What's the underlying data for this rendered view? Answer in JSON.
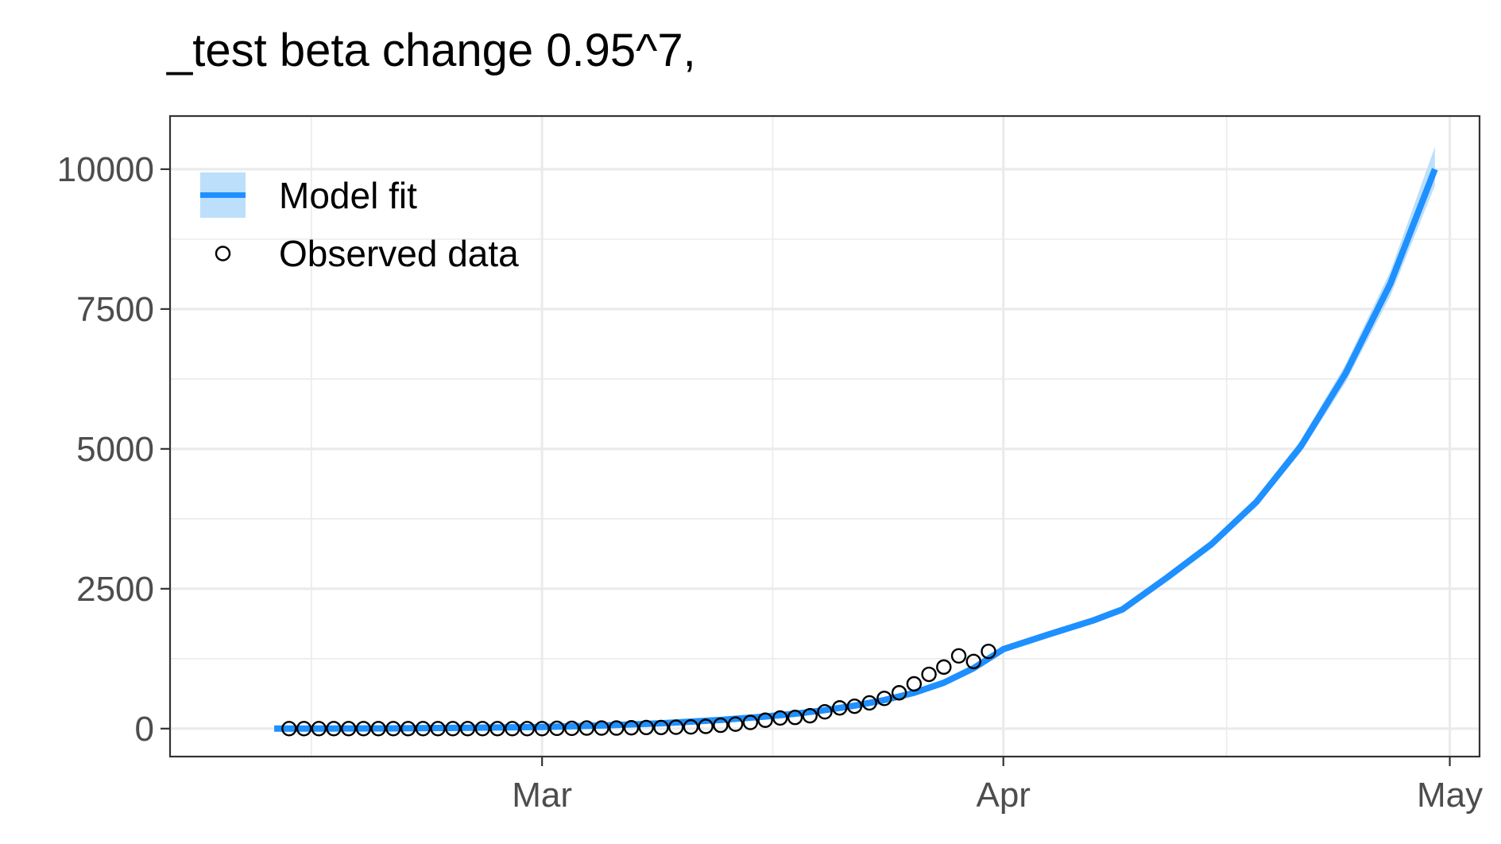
{
  "chart_data": {
    "type": "line",
    "title": "_test beta change 0.95^7,",
    "xlabel": "",
    "ylabel": "",
    "x_ticks": [
      {
        "label": "Mar",
        "date": "2020-03-01"
      },
      {
        "label": "Apr",
        "date": "2020-04-01"
      },
      {
        "label": "May",
        "date": "2020-05-01"
      }
    ],
    "y_ticks": [
      0,
      2500,
      5000,
      7500,
      10000
    ],
    "xlim": [
      "2020-02-05",
      "2020-05-03"
    ],
    "ylim": [
      -500,
      10950
    ],
    "grid": true,
    "legend_position": "top-left",
    "legend": [
      {
        "label": "Model fit",
        "symbol": "line-with-ribbon"
      },
      {
        "label": "Observed data",
        "symbol": "open-circle"
      }
    ],
    "colors": {
      "model_line": "#1e90ff",
      "ribbon": "#bcdffb",
      "points": "#000000",
      "grid": "#ebebeb",
      "panel_border": "#333333"
    },
    "series": [
      {
        "name": "Model fit",
        "kind": "line",
        "x": [
          "2020-02-12",
          "2020-02-20",
          "2020-02-25",
          "2020-03-01",
          "2020-03-05",
          "2020-03-09",
          "2020-03-13",
          "2020-03-16",
          "2020-03-18",
          "2020-03-20",
          "2020-03-22",
          "2020-03-24",
          "2020-03-26",
          "2020-03-28",
          "2020-03-30",
          "2020-04-01",
          "2020-04-04",
          "2020-04-07",
          "2020-04-09",
          "2020-04-12",
          "2020-04-15",
          "2020-04-18",
          "2020-04-21",
          "2020-04-24",
          "2020-04-27",
          "2020-04-30"
        ],
        "y": [
          0,
          5,
          15,
          30,
          55,
          95,
          155,
          215,
          265,
          330,
          410,
          510,
          640,
          820,
          1080,
          1420,
          1680,
          1930,
          2130,
          2700,
          3300,
          4050,
          5050,
          6350,
          7950,
          10000
        ],
        "ribbon_lower": [
          0,
          4,
          13,
          27,
          50,
          88,
          145,
          200,
          245,
          305,
          380,
          475,
          600,
          775,
          1030,
          1370,
          1640,
          1890,
          2090,
          2650,
          3240,
          3970,
          4940,
          6190,
          7730,
          9700
        ],
        "ribbon_upper": [
          0,
          6,
          17,
          33,
          60,
          102,
          165,
          230,
          285,
          355,
          440,
          545,
          680,
          865,
          1130,
          1470,
          1720,
          1970,
          2170,
          2750,
          3360,
          4130,
          5160,
          6510,
          8170,
          10400
        ]
      },
      {
        "name": "Observed data",
        "kind": "scatter",
        "x": [
          "2020-02-13",
          "2020-02-14",
          "2020-02-15",
          "2020-02-16",
          "2020-02-17",
          "2020-02-18",
          "2020-02-19",
          "2020-02-20",
          "2020-02-21",
          "2020-02-22",
          "2020-02-23",
          "2020-02-24",
          "2020-02-25",
          "2020-02-26",
          "2020-02-27",
          "2020-02-28",
          "2020-02-29",
          "2020-03-01",
          "2020-03-02",
          "2020-03-03",
          "2020-03-04",
          "2020-03-05",
          "2020-03-06",
          "2020-03-07",
          "2020-03-08",
          "2020-03-09",
          "2020-03-10",
          "2020-03-11",
          "2020-03-12",
          "2020-03-13",
          "2020-03-14",
          "2020-03-15",
          "2020-03-16",
          "2020-03-17",
          "2020-03-18",
          "2020-03-19",
          "2020-03-20",
          "2020-03-21",
          "2020-03-22",
          "2020-03-23",
          "2020-03-24",
          "2020-03-25",
          "2020-03-26",
          "2020-03-27",
          "2020-03-28",
          "2020-03-29",
          "2020-03-30",
          "2020-03-31"
        ],
        "y": [
          0,
          0,
          0,
          0,
          0,
          0,
          0,
          0,
          0,
          0,
          0,
          0,
          0,
          0,
          0,
          0,
          0,
          0,
          5,
          5,
          10,
          10,
          10,
          15,
          20,
          20,
          25,
          30,
          40,
          60,
          80,
          110,
          150,
          190,
          200,
          230,
          300,
          370,
          400,
          460,
          540,
          640,
          800,
          970,
          1100,
          1300,
          1200,
          1380
        ]
      }
    ]
  }
}
